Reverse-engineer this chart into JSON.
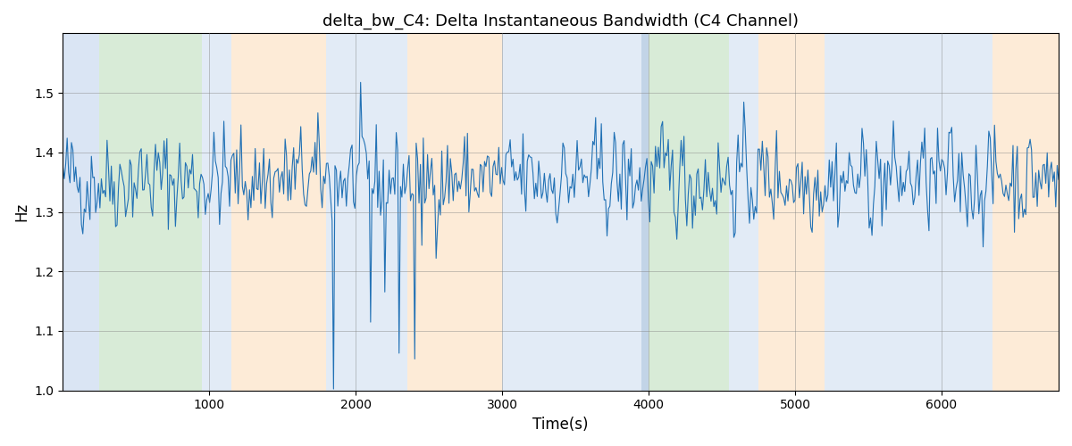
{
  "title": "delta_bw_C4: Delta Instantaneous Bandwidth (C4 Channel)",
  "xlabel": "Time(s)",
  "ylabel": "Hz",
  "xlim": [
    0,
    6800
  ],
  "ylim": [
    1.0,
    1.6
  ],
  "line_color": "#2171b5",
  "line_width": 0.8,
  "grid": true,
  "bg_regions": [
    {
      "xstart": 0,
      "xend": 250,
      "color": "#aec7e8",
      "alpha": 0.45
    },
    {
      "xstart": 250,
      "xend": 950,
      "color": "#b3d9b0",
      "alpha": 0.5
    },
    {
      "xstart": 950,
      "xend": 1150,
      "color": "#aec7e8",
      "alpha": 0.35
    },
    {
      "xstart": 1150,
      "xend": 1800,
      "color": "#fdd9b0",
      "alpha": 0.5
    },
    {
      "xstart": 1800,
      "xend": 2350,
      "color": "#aec7e8",
      "alpha": 0.35
    },
    {
      "xstart": 2350,
      "xend": 3000,
      "color": "#fdd9b0",
      "alpha": 0.5
    },
    {
      "xstart": 3000,
      "xend": 3950,
      "color": "#aec7e8",
      "alpha": 0.35
    },
    {
      "xstart": 3950,
      "xend": 4000,
      "color": "#9ab8d8",
      "alpha": 0.6
    },
    {
      "xstart": 4000,
      "xend": 4550,
      "color": "#b3d9b0",
      "alpha": 0.5
    },
    {
      "xstart": 4550,
      "xend": 4750,
      "color": "#aec7e8",
      "alpha": 0.35
    },
    {
      "xstart": 4750,
      "xend": 5200,
      "color": "#fdd9b0",
      "alpha": 0.5
    },
    {
      "xstart": 5200,
      "xend": 5500,
      "color": "#aec7e8",
      "alpha": 0.35
    },
    {
      "xstart": 5500,
      "xend": 6100,
      "color": "#aec7e8",
      "alpha": 0.35
    },
    {
      "xstart": 6100,
      "xend": 6350,
      "color": "#aec7e8",
      "alpha": 0.35
    },
    {
      "xstart": 6350,
      "xend": 6800,
      "color": "#fdd9b0",
      "alpha": 0.5
    }
  ],
  "seed": 42,
  "num_points": 700,
  "base_mean": 1.355,
  "noise_std": 0.042
}
